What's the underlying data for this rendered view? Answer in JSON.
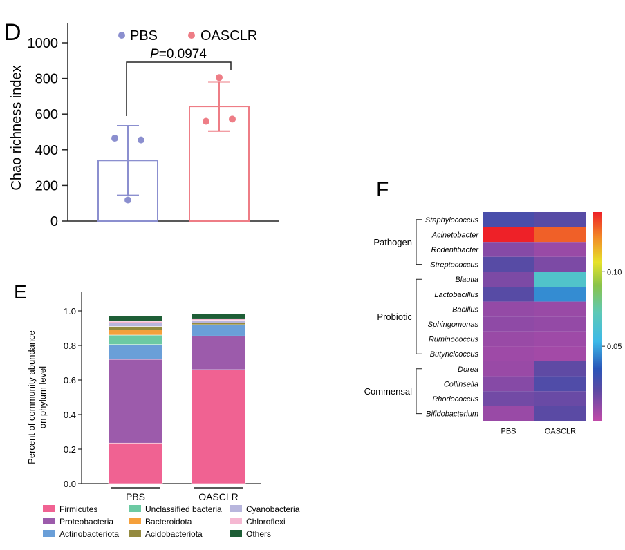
{
  "chart_data": [
    {
      "panel": "D",
      "type": "bar",
      "ylabel": "Chao richness index",
      "ylim": [
        0,
        1000
      ],
      "yticks": [
        0,
        200,
        400,
        600,
        800,
        1000
      ],
      "series": [
        {
          "name": "PBS",
          "mean": 340,
          "sd": 195,
          "points": [
            465,
            455,
            118
          ],
          "color": "#8b8fcf"
        },
        {
          "name": "OASCLR",
          "mean": 643,
          "sd": 138,
          "points": [
            560,
            572,
            805
          ],
          "color": "#ee7d86"
        }
      ],
      "annotation": {
        "italic": "P",
        "text": "=0.0974"
      },
      "legend_position": "top"
    },
    {
      "panel": "E",
      "type": "bar",
      "stacked": true,
      "ylabel_line1": "Percent of community abundance",
      "ylabel_line2": "on phylum level",
      "ylim": [
        0,
        1.0
      ],
      "yticks": [
        "0.0",
        "0.2",
        "0.4",
        "0.6",
        "0.8",
        "1.0"
      ],
      "categories": [
        "PBS",
        "OASCLR"
      ],
      "series": [
        {
          "name": "Firmicutes",
          "color": "#f06292",
          "values": [
            0.235,
            0.66
          ]
        },
        {
          "name": "Proteobacteria",
          "color": "#9c5bab",
          "values": [
            0.485,
            0.195
          ]
        },
        {
          "name": "Actinobacteriota",
          "color": "#6a9fd8",
          "values": [
            0.085,
            0.065
          ]
        },
        {
          "name": "Unclassified bacteria",
          "color": "#6ccaa3",
          "values": [
            0.055,
            0.0
          ]
        },
        {
          "name": "Bacteroidota",
          "color": "#f5a03b",
          "values": [
            0.03,
            0.0
          ]
        },
        {
          "name": "Acidobacteriota",
          "color": "#948a3f",
          "values": [
            0.02,
            0.01
          ]
        },
        {
          "name": "Cyanobacteria",
          "color": "#b8b6dd",
          "values": [
            0.02,
            0.015
          ]
        },
        {
          "name": "Chloroflexi",
          "color": "#f5b8d2",
          "values": [
            0.01,
            0.01
          ]
        },
        {
          "name": "Others",
          "color": "#1e5e36",
          "values": [
            0.03,
            0.03
          ]
        }
      ]
    },
    {
      "panel": "F",
      "type": "heatmap",
      "columns": [
        "PBS",
        "OASCLR"
      ],
      "rows": [
        "Staphylococcus",
        "Acinetobacter",
        "Rodentibacter",
        "Streptococcus",
        "Blautia",
        "Lactobacillus",
        "Bacillus",
        "Sphingomonas",
        "Ruminococcus",
        "Butyricicoccus",
        "Dorea",
        "Collinsella",
        "Rhodococcus",
        "Bifidobacterium"
      ],
      "groups": [
        {
          "label": "Pathogen",
          "rows": [
            0,
            3
          ]
        },
        {
          "label": "Probiotic",
          "rows": [
            4,
            9
          ]
        },
        {
          "label": "Commensal",
          "rows": [
            10,
            13
          ]
        }
      ],
      "values": [
        [
          0.026,
          0.022
        ],
        [
          0.14,
          0.13
        ],
        [
          0.012,
          0.008
        ],
        [
          0.022,
          0.014
        ],
        [
          0.014,
          0.065
        ],
        [
          0.022,
          0.045
        ],
        [
          0.009,
          0.008
        ],
        [
          0.01,
          0.009
        ],
        [
          0.008,
          0.007
        ],
        [
          0.007,
          0.006
        ],
        [
          0.008,
          0.02
        ],
        [
          0.012,
          0.024
        ],
        [
          0.016,
          0.018
        ],
        [
          0.008,
          0.021
        ]
      ],
      "colorbar": {
        "min": 0.0,
        "max": 0.14,
        "tick_labels": [
          "0.05",
          "0.10"
        ],
        "tick_values": [
          0.05,
          0.1
        ]
      }
    }
  ],
  "panels": {
    "D": "D",
    "E": "E",
    "F": "F"
  },
  "significance_text_italic": "P",
  "significance_text_rest": "=0.0974"
}
